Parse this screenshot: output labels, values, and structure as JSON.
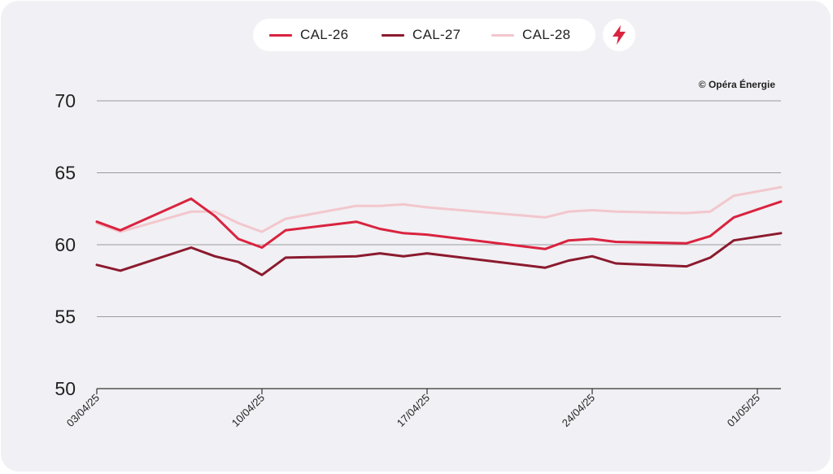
{
  "credit": "© Opéra Énergie",
  "energy_icon": "lightning-bolt-icon",
  "colors": {
    "background": "#f1f0f4",
    "grid": "#9b9b9b",
    "accent": "#d9233f"
  },
  "chart_data": {
    "type": "line",
    "title": "",
    "xlabel": "",
    "ylabel": "",
    "ylim": [
      50,
      70
    ],
    "y_ticks": [
      50,
      55,
      60,
      65,
      70
    ],
    "x_ticks": [
      "03/04/25",
      "10/04/25",
      "17/04/25",
      "24/04/25",
      "01/05/25"
    ],
    "x_range": [
      "2025-04-03",
      "2025-05-02"
    ],
    "grid": true,
    "legend_position": "top-center",
    "x": [
      "2025-04-03",
      "2025-04-04",
      "2025-04-07",
      "2025-04-08",
      "2025-04-09",
      "2025-04-10",
      "2025-04-11",
      "2025-04-14",
      "2025-04-15",
      "2025-04-16",
      "2025-04-17",
      "2025-04-22",
      "2025-04-23",
      "2025-04-24",
      "2025-04-25",
      "2025-04-28",
      "2025-04-29",
      "2025-04-30",
      "2025-05-02"
    ],
    "series": [
      {
        "name": "CAL-26",
        "color": "#d9233f",
        "values": [
          61.6,
          61.0,
          63.2,
          62.0,
          60.4,
          59.8,
          61.0,
          61.6,
          61.1,
          60.8,
          60.7,
          59.7,
          60.3,
          60.4,
          60.2,
          60.1,
          60.6,
          61.9,
          63.0
        ]
      },
      {
        "name": "CAL-27",
        "color": "#8b1a2e",
        "values": [
          58.6,
          58.2,
          59.8,
          59.2,
          58.8,
          57.9,
          59.1,
          59.2,
          59.4,
          59.2,
          59.4,
          58.4,
          58.9,
          59.2,
          58.7,
          58.5,
          59.1,
          60.3,
          60.8
        ]
      },
      {
        "name": "CAL-28",
        "color": "#f2c7cd",
        "values": [
          61.5,
          60.9,
          62.3,
          62.3,
          61.5,
          60.9,
          61.8,
          62.7,
          62.7,
          62.8,
          62.6,
          61.9,
          62.3,
          62.4,
          62.3,
          62.2,
          62.3,
          63.4,
          64.0
        ]
      }
    ]
  }
}
